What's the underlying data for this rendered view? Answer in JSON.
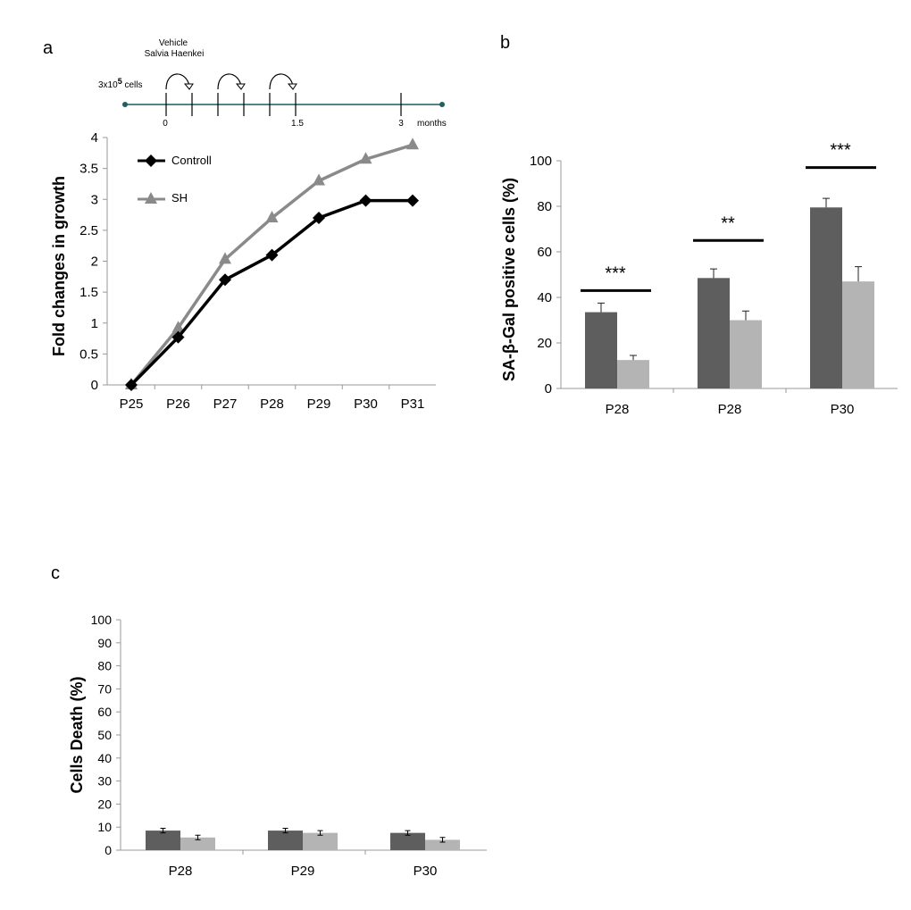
{
  "chart_data": [
    {
      "panel": "a",
      "type": "line",
      "categories": [
        "P25",
        "P26",
        "P27",
        "P28",
        "P29",
        "P30",
        "P31"
      ],
      "ylabel": "Fold changes in growth",
      "ylim": [
        0,
        4
      ],
      "yticks": [
        "0",
        "0.5",
        "1",
        "1.5",
        "2",
        "2.5",
        "3",
        "3.5",
        "4"
      ],
      "legend_position": "top-left",
      "series": [
        {
          "name": "Controll",
          "color": "#000000",
          "marker": "diamond",
          "values": [
            0,
            0.77,
            1.7,
            2.1,
            2.7,
            2.98,
            2.98
          ]
        },
        {
          "name": "SH",
          "color": "#8a8a8a",
          "marker": "triangle",
          "values": [
            0,
            0.92,
            2.03,
            2.7,
            3.3,
            3.65,
            3.88
          ]
        }
      ],
      "timeline": {
        "treatment_label_1": "Vehicle",
        "treatment_label_2": "Salvia Haenkei",
        "cells_prefix": "3x10",
        "cells_exp": "5",
        "cells_suffix": " cells",
        "tick_labels": [
          "0",
          "1.5",
          "3"
        ],
        "unit_label": "months"
      }
    },
    {
      "panel": "b",
      "type": "bar",
      "categories": [
        "P28",
        "P28",
        "P30"
      ],
      "ylabel": "SA-β-Gal positive cells (%)",
      "ylim": [
        0,
        100
      ],
      "yticks": [
        "0",
        "20",
        "40",
        "60",
        "80",
        "100"
      ],
      "series": [
        {
          "name": "Control",
          "color": "#5e5e5e",
          "values": [
            33.5,
            48.5,
            79.5
          ],
          "errors": [
            4,
            4,
            4
          ]
        },
        {
          "name": "SH",
          "color": "#b4b4b4",
          "values": [
            12.5,
            30,
            47
          ],
          "errors": [
            2,
            4,
            6.5
          ]
        }
      ],
      "significance": [
        "***",
        "**",
        "***"
      ],
      "significance_levels": [
        43,
        65,
        97
      ]
    },
    {
      "panel": "c",
      "type": "bar",
      "categories": [
        "P28",
        "P29",
        "P30"
      ],
      "ylabel": "Cells Death (%)",
      "ylim": [
        0,
        100
      ],
      "yticks": [
        "0",
        "10",
        "20",
        "30",
        "40",
        "50",
        "60",
        "70",
        "80",
        "90",
        "100"
      ],
      "series": [
        {
          "name": "Control",
          "color": "#5e5e5e",
          "values": [
            8.5,
            8.5,
            7.5
          ],
          "errors": [
            1,
            1,
            1
          ]
        },
        {
          "name": "SH",
          "color": "#b4b4b4",
          "values": [
            5.5,
            7.5,
            4.5
          ],
          "errors": [
            1,
            1,
            1
          ]
        }
      ]
    }
  ]
}
